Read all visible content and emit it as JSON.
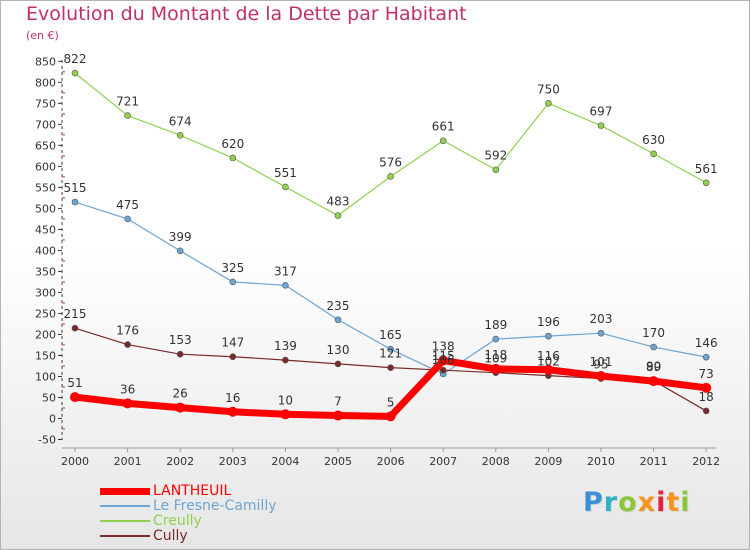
{
  "header": {
    "title": "Evolution du Montant de la Dette par Habitant",
    "subtitle": "(en €)"
  },
  "logo": {
    "text": "Proxiti"
  },
  "colors": {
    "title": "#c0306a",
    "axis": "#3c3c3c",
    "grid_tick": "#c0306a"
  },
  "chart_data": {
    "type": "line",
    "x": [
      "2000",
      "2001",
      "2002",
      "2003",
      "2004",
      "2005",
      "2006",
      "2007",
      "2008",
      "2009",
      "2010",
      "2011",
      "2012"
    ],
    "ylim": [
      -50,
      850
    ],
    "yticks": [
      -50,
      0,
      50,
      100,
      150,
      200,
      250,
      300,
      350,
      400,
      450,
      500,
      550,
      600,
      650,
      700,
      750,
      800,
      850
    ],
    "title": "Evolution du Montant de la Dette par Habitant",
    "ylabel": "(en €)",
    "legend_position": "bottom-left",
    "series": [
      {
        "name": "LANTHEUIL",
        "color": "#ff0000",
        "values": [
          51,
          36,
          26,
          16,
          10,
          7,
          5,
          138,
          118,
          116,
          101,
          89,
          73
        ]
      },
      {
        "name": "Le Fresne-Camilly",
        "color": "#6ca5d4",
        "values": [
          515,
          475,
          399,
          325,
          317,
          235,
          165,
          106,
          189,
          196,
          203,
          170,
          146
        ]
      },
      {
        "name": "Creully",
        "color": "#8fd14f",
        "values": [
          822,
          721,
          674,
          620,
          551,
          483,
          576,
          661,
          592,
          750,
          697,
          630,
          561
        ]
      },
      {
        "name": "Cully",
        "color": "#7a2a2a",
        "values": [
          215,
          176,
          153,
          147,
          139,
          130,
          121,
          115,
          109,
          102,
          95,
          90,
          18
        ]
      }
    ]
  }
}
